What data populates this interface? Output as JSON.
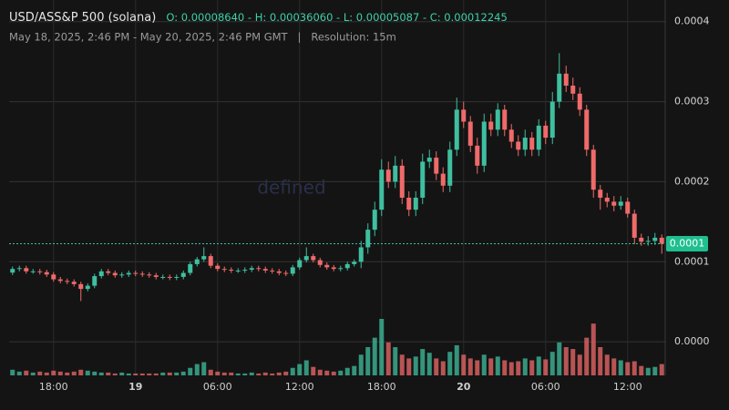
{
  "chart_data": {
    "type": "candlestick",
    "title": "USD/ASS&P 500 (solana)",
    "ohlc_text": "O: 0.00008640 - H: 0.00036060 - L: 0.00005087 - C: 0.00012245",
    "subtitle": "May 18, 2025, 2:46 PM - May 20, 2025, 2:46 PM GMT   |   Resolution: 15m",
    "watermark": "defined",
    "price_label": "0.0001",
    "up_color": "#3fbf9f",
    "down_color": "#f06a6a",
    "grid": true,
    "ylim": [
      -4.2e-05,
      0.000427
    ],
    "yticks": [
      0.0004,
      0.0003,
      0.0002,
      0.0001,
      {
        "value": 0,
        "label": "0.0000"
      }
    ],
    "categories": [
      null,
      null,
      null,
      null,
      null,
      null,
      "18:00",
      null,
      null,
      null,
      null,
      null,
      null,
      null,
      null,
      null,
      null,
      null,
      "19",
      null,
      null,
      null,
      null,
      null,
      null,
      null,
      null,
      null,
      null,
      null,
      "06:00",
      null,
      null,
      null,
      null,
      null,
      null,
      null,
      null,
      null,
      null,
      null,
      "12:00",
      null,
      null,
      null,
      null,
      null,
      null,
      null,
      null,
      null,
      null,
      null,
      "18:00",
      null,
      null,
      null,
      null,
      null,
      null,
      null,
      null,
      null,
      null,
      null,
      "20",
      null,
      null,
      null,
      null,
      null,
      null,
      null,
      null,
      null,
      null,
      null,
      "06:00",
      null,
      null,
      null,
      null,
      null,
      null,
      null,
      null,
      null,
      null,
      null,
      "12:00",
      null,
      null,
      null,
      null,
      null
    ],
    "bold_categories": [
      "19",
      "20"
    ],
    "open": [
      8.64e-05,
      9.1e-05,
      9.2e-05,
      8.8e-05,
      8.8e-05,
      8.7e-05,
      8.4e-05,
      7.8e-05,
      7.6e-05,
      7.5e-05,
      7.2e-05,
      6.6e-05,
      7e-05,
      8.2e-05,
      8.8e-05,
      8.6e-05,
      8.3e-05,
      8.4e-05,
      8.6e-05,
      8.5e-05,
      8.4e-05,
      8.3e-05,
      8.1e-05,
      8.1e-05,
      8e-05,
      8.1e-05,
      8.6e-05,
      9.7e-05,
      0.000103,
      0.000107,
      9.5e-05,
      9.1e-05,
      9e-05,
      8.9e-05,
      8.9e-05,
      9e-05,
      9.2e-05,
      9.1e-05,
      8.9e-05,
      8.8e-05,
      8.6e-05,
      8.5e-05,
      9.3e-05,
      0.000102,
      0.000107,
      0.000102,
      9.6e-05,
      9.3e-05,
      9.1e-05,
      9.2e-05,
      9.7e-05,
      0.0001,
      0.000118,
      0.00014,
      0.000165,
      0.000215,
      0.0002,
      0.00022,
      0.00018,
      0.000165,
      0.00018,
      0.000225,
      0.00023,
      0.00021,
      0.000195,
      0.00024,
      0.00029,
      0.000275,
      0.000245,
      0.00022,
      0.000275,
      0.000265,
      0.00029,
      0.000265,
      0.00025,
      0.00024,
      0.000255,
      0.00024,
      0.00027,
      0.000255,
      0.0003,
      0.000335,
      0.00032,
      0.00031,
      0.00029,
      0.00024,
      0.00019,
      0.00018,
      0.000175,
      0.00017,
      0.000175,
      0.00016,
      0.00013,
      0.000125,
      0.000126,
      0.00013
    ],
    "high": [
      9.4e-05,
      9.5e-05,
      9.5e-05,
      9.1e-05,
      9.1e-05,
      9e-05,
      8.7e-05,
      8.1e-05,
      7.9e-05,
      7.8e-05,
      7.5e-05,
      7.3e-05,
      8.5e-05,
      9.1e-05,
      9.1e-05,
      8.9e-05,
      8.7e-05,
      8.9e-05,
      8.9e-05,
      8.8e-05,
      8.7e-05,
      8.6e-05,
      8.4e-05,
      8.4e-05,
      8.4e-05,
      8.9e-05,
      0.0001,
      0.000106,
      0.000118,
      0.00011,
      9.8e-05,
      9.4e-05,
      9.3e-05,
      9.2e-05,
      9.3e-05,
      9.5e-05,
      9.5e-05,
      9.4e-05,
      9.2e-05,
      9.1e-05,
      8.9e-05,
      9.6e-05,
      0.000105,
      0.000118,
      0.00011,
      0.000105,
      9.9e-05,
      9.6e-05,
      9.5e-05,
      0.0001,
      0.000103,
      0.000126,
      0.000148,
      0.000175,
      0.000228,
      0.000225,
      0.000232,
      0.000228,
      0.000188,
      0.000188,
      0.000235,
      0.00024,
      0.000238,
      0.000218,
      0.00025,
      0.000305,
      0.0003,
      0.000282,
      0.000255,
      0.000285,
      0.000285,
      0.000298,
      0.000296,
      0.000272,
      0.000258,
      0.000265,
      0.000262,
      0.000278,
      0.000276,
      0.000312,
      0.0003606,
      0.000345,
      0.00033,
      0.000318,
      0.000296,
      0.000246,
      0.000196,
      0.000186,
      0.000182,
      0.000182,
      0.00018,
      0.000165,
      0.000135,
      0.000132,
      0.000136,
      0.000134
    ],
    "low": [
      8.34e-05,
      8.8e-05,
      8.5e-05,
      8.5e-05,
      8.4e-05,
      8.1e-05,
      7.5e-05,
      7.3e-05,
      7.2e-05,
      6.9e-05,
      5.087e-05,
      6.3e-05,
      6.7e-05,
      7.9e-05,
      8.3e-05,
      8e-05,
      8e-05,
      8.1e-05,
      8.2e-05,
      8.1e-05,
      8e-05,
      7.8e-05,
      7.8e-05,
      7.7e-05,
      7.7e-05,
      7.8e-05,
      8.3e-05,
      9.4e-05,
      0.0001,
      9.2e-05,
      8.8e-05,
      8.7e-05,
      8.6e-05,
      8.6e-05,
      8.6e-05,
      8.7e-05,
      8.8e-05,
      8.6e-05,
      8.5e-05,
      8.3e-05,
      8.2e-05,
      8.2e-05,
      9e-05,
      9.9e-05,
      9.9e-05,
      9.3e-05,
      9e-05,
      8.8e-05,
      8.8e-05,
      8.9e-05,
      9.4e-05,
      9.2e-05,
      0.00011,
      0.000132,
      0.000157,
      0.000192,
      0.000192,
      0.000172,
      0.000157,
      0.000157,
      0.000172,
      0.000217,
      0.000202,
      0.000187,
      0.000187,
      0.000232,
      0.000267,
      0.000237,
      0.00021,
      0.000212,
      0.000257,
      0.000257,
      0.000257,
      0.000242,
      0.000232,
      0.000232,
      0.000232,
      0.000232,
      0.000247,
      0.000247,
      0.000292,
      0.000312,
      0.000302,
      0.000282,
      0.000232,
      0.00018,
      0.000165,
      0.000168,
      0.000163,
      0.000165,
      0.000155,
      0.000122,
      0.00012,
      0.00012,
      0.000121,
      0.00011
    ],
    "close": [
      9.1e-05,
      9.2e-05,
      8.8e-05,
      8.8e-05,
      8.7e-05,
      8.4e-05,
      7.8e-05,
      7.6e-05,
      7.5e-05,
      7.2e-05,
      6.6e-05,
      7e-05,
      8.2e-05,
      8.8e-05,
      8.6e-05,
      8.3e-05,
      8.4e-05,
      8.6e-05,
      8.5e-05,
      8.4e-05,
      8.3e-05,
      8.1e-05,
      8.1e-05,
      8e-05,
      8.1e-05,
      8.6e-05,
      9.7e-05,
      0.000103,
      0.000107,
      9.5e-05,
      9.1e-05,
      9e-05,
      8.9e-05,
      8.9e-05,
      9e-05,
      9.2e-05,
      9.1e-05,
      8.9e-05,
      8.8e-05,
      8.6e-05,
      8.5e-05,
      9.3e-05,
      0.000102,
      0.000107,
      0.000102,
      9.6e-05,
      9.3e-05,
      9.1e-05,
      9.2e-05,
      9.7e-05,
      0.0001,
      0.000118,
      0.00014,
      0.000165,
      0.000215,
      0.0002,
      0.00022,
      0.00018,
      0.000165,
      0.00018,
      0.000225,
      0.00023,
      0.00021,
      0.000195,
      0.00024,
      0.00029,
      0.000275,
      0.000245,
      0.00022,
      0.000275,
      0.000265,
      0.00029,
      0.000265,
      0.00025,
      0.00024,
      0.000255,
      0.00024,
      0.00027,
      0.000255,
      0.0003,
      0.000335,
      0.00032,
      0.00031,
      0.00029,
      0.00024,
      0.00019,
      0.00018,
      0.000175,
      0.00017,
      0.000175,
      0.00016,
      0.00013,
      0.000125,
      0.000126,
      0.00013,
      0.00012245
    ],
    "volume": [
      6,
      4,
      5,
      3,
      4,
      3,
      5,
      4,
      3,
      4,
      6,
      5,
      4,
      3,
      3,
      2,
      3,
      2,
      2,
      2,
      2,
      2,
      3,
      3,
      3,
      4,
      8,
      12,
      14,
      6,
      4,
      3,
      3,
      2,
      2,
      3,
      2,
      3,
      2,
      3,
      4,
      8,
      12,
      16,
      9,
      6,
      5,
      4,
      5,
      8,
      10,
      22,
      30,
      40,
      60,
      35,
      30,
      22,
      18,
      20,
      28,
      24,
      18,
      15,
      25,
      32,
      22,
      18,
      16,
      22,
      18,
      20,
      16,
      14,
      15,
      18,
      16,
      20,
      17,
      25,
      35,
      30,
      28,
      22,
      40,
      55,
      30,
      22,
      18,
      16,
      14,
      15,
      10,
      8,
      9,
      12
    ]
  }
}
